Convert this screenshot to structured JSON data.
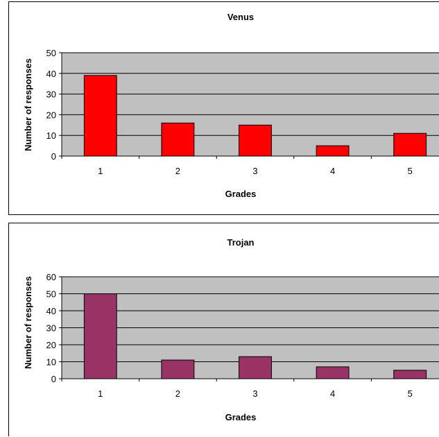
{
  "chart_data": [
    {
      "type": "bar",
      "title": "Venus",
      "xlabel": "Grades",
      "ylabel": "Number of responses",
      "categories": [
        "1",
        "2",
        "3",
        "4",
        "5"
      ],
      "values": [
        39,
        16,
        15,
        5,
        11
      ],
      "ylim": [
        0,
        50
      ],
      "yticks": [
        0,
        10,
        20,
        30,
        40,
        50
      ],
      "grid": true,
      "bar_color": "#ff0000",
      "plot_background": "#c0c0c0"
    },
    {
      "type": "bar",
      "title": "Trojan",
      "xlabel": "Grades",
      "ylabel": "Number of responses",
      "categories": [
        "1",
        "2",
        "3",
        "4",
        "5"
      ],
      "values": [
        50,
        11,
        13,
        7,
        5
      ],
      "ylim": [
        0,
        60
      ],
      "yticks": [
        0,
        10,
        20,
        30,
        40,
        50,
        60
      ],
      "grid": true,
      "bar_color": "#993366",
      "plot_background": "#c0c0c0"
    }
  ]
}
